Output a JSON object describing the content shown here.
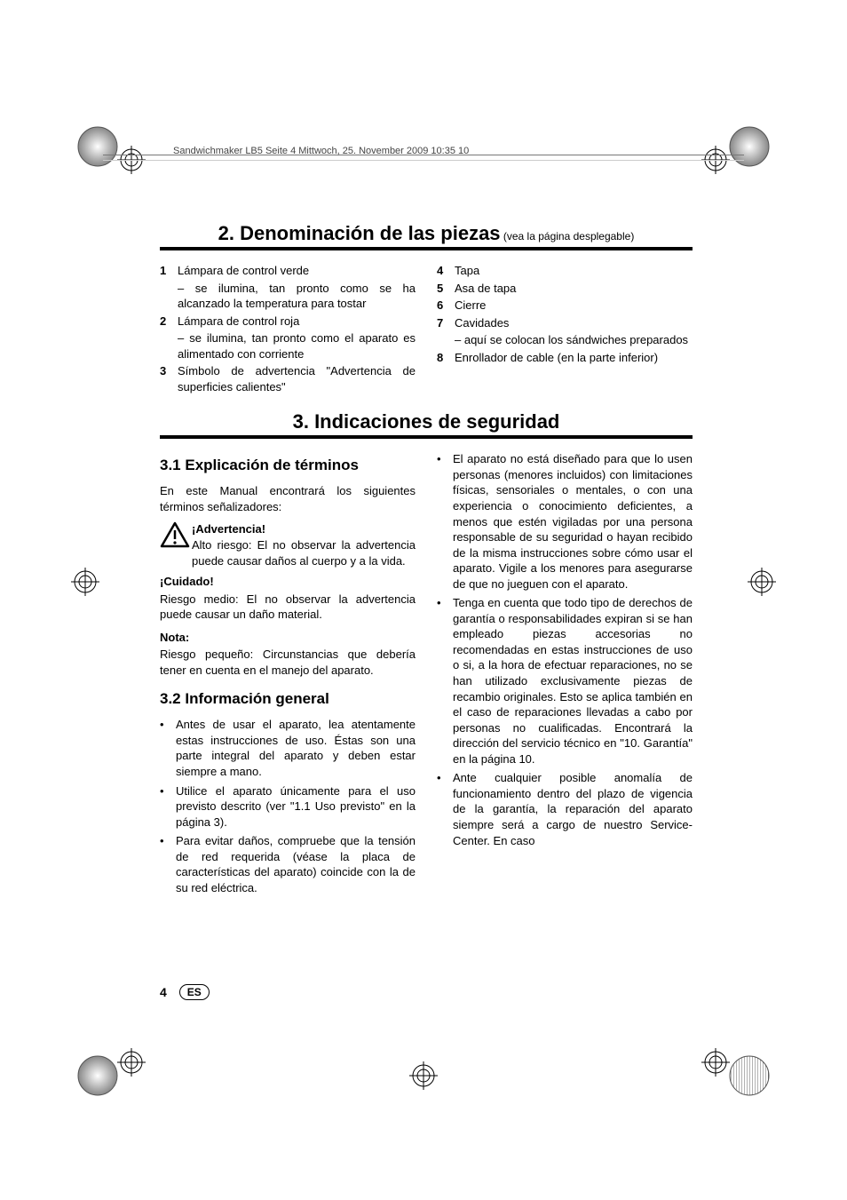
{
  "header": {
    "running": "Sandwichmaker LB5  Seite 4  Mittwoch, 25. November 2009  10:35 10"
  },
  "section2": {
    "title": "2. Denominación de las piezas",
    "subtitle": " (vea la página desplegable)",
    "items": [
      {
        "n": "1",
        "t": "Lámpara de control verde",
        "subs": [
          "se ilumina, tan pronto como se ha alcanzado la temperatura para tostar"
        ]
      },
      {
        "n": "2",
        "t": "Lámpara de control roja",
        "subs": [
          "se ilumina, tan pronto como el aparato es alimentado con corriente"
        ]
      },
      {
        "n": "3",
        "t": "Símbolo de advertencia \"Advertencia de superficies calientes\"",
        "subs": []
      },
      {
        "n": "4",
        "t": "Tapa",
        "subs": []
      },
      {
        "n": "5",
        "t": "Asa de tapa",
        "subs": []
      },
      {
        "n": "6",
        "t": "Cierre",
        "subs": []
      },
      {
        "n": "7",
        "t": "Cavidades",
        "subs": [
          "aquí se colocan los sándwiches preparados"
        ]
      },
      {
        "n": "8",
        "t": "Enrollador de cable (en la parte inferior)",
        "subs": []
      }
    ]
  },
  "section3": {
    "title": "3. Indicaciones de seguridad",
    "s31": {
      "h": "3.1 Explicación de términos",
      "intro": "En este Manual encontrará los siguientes términos señalizadores:",
      "warn_label": "¡Advertencia!",
      "warn_text": "Alto riesgo: El no observar la advertencia puede causar daños al cuerpo y a la vida.",
      "care_label": "¡Cuidado!",
      "care_text": "Riesgo medio: El no observar la advertencia puede causar un daño material.",
      "note_label": "Nota:",
      "note_text": "Riesgo pequeño: Circunstancias que debería tener en cuenta en el manejo del aparato."
    },
    "s32": {
      "h": "3.2 Información general",
      "bullets_left": [
        "Antes de usar el aparato, lea atentamente estas instrucciones de uso. Éstas son una parte integral del aparato y deben estar siempre a mano.",
        "Utilice el aparato únicamente para el uso previsto descrito (ver \"1.1 Uso previsto\" en la página 3).",
        "Para evitar daños, compruebe que la tensión de red requerida (véase la placa de características del aparato) coincide con la de su red eléctrica."
      ],
      "bullets_right": [
        "El aparato no está diseñado para que lo usen personas (menores incluidos) con limitaciones físicas, sensoriales o mentales, o con una experiencia o conocimiento deficientes, a menos que estén vigiladas por una persona responsable de su seguridad o hayan recibido de la misma instrucciones sobre cómo usar el aparato. Vigile a los menores para asegurarse de que no jueguen con el aparato.",
        "Tenga en cuenta que todo tipo de derechos de garantía o responsabilidades expiran si se han empleado piezas accesorias no recomendadas en estas instrucciones de uso o si, a la hora de efectuar reparaciones, no se han utilizado exclusivamente piezas de recambio originales. Esto se aplica también en el caso de reparaciones llevadas a cabo por personas no cualificadas. Encontrará la dirección del servicio técnico en \"10. Garantía\" en la página 10.",
        "Ante cualquier posible anomalía de funcionamiento dentro del plazo de vigencia de la garantía, la reparación del aparato siempre será a cargo de nuestro Service-Center. En caso"
      ]
    }
  },
  "footer": {
    "page": "4",
    "lang": "ES"
  },
  "colors": {
    "text": "#000000",
    "bg": "#ffffff"
  }
}
